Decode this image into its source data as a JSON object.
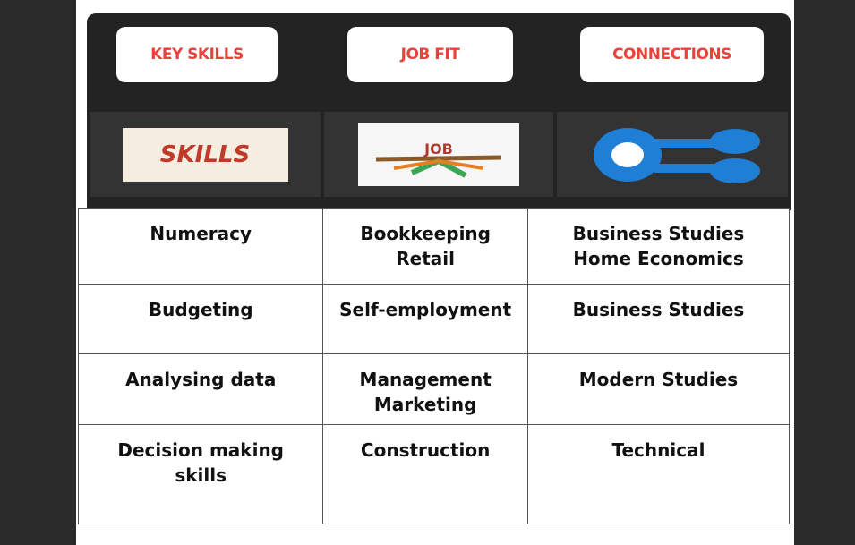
{
  "tabs": [
    "KEY SKILLS",
    "JOB FIT",
    "CONNECTIONS"
  ],
  "icons": [
    "SKILLS",
    "JOB"
  ],
  "table": {
    "rows": [
      [
        [
          "Numeracy"
        ],
        [
          "Bookkeeping",
          "Retail"
        ],
        [
          "Business Studies",
          "Home Economics"
        ]
      ],
      [
        [
          "Budgeting"
        ],
        [
          "Self-employment"
        ],
        [
          "Business Studies"
        ]
      ],
      [
        [
          "Analysing data"
        ],
        [
          "Management",
          "Marketing"
        ],
        [
          "Modern Studies"
        ]
      ],
      [
        [
          "Decision making skills"
        ],
        [
          "Construction"
        ],
        [
          "Technical"
        ]
      ]
    ]
  }
}
